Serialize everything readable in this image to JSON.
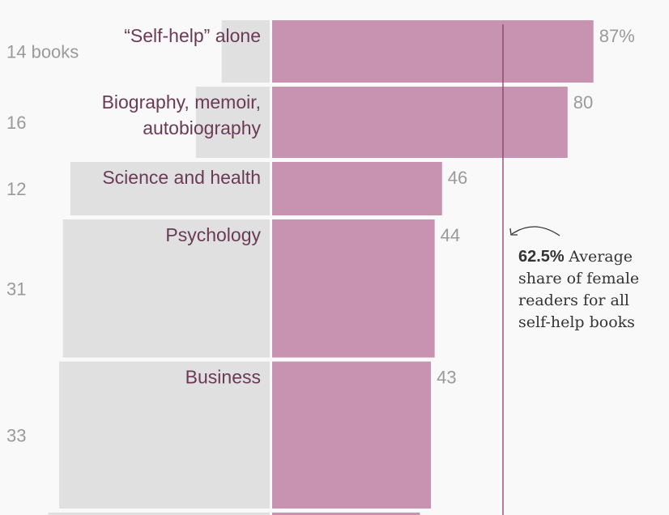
{
  "chart_data": {
    "type": "bar",
    "description_of_encoding": "",
    "categories": [
      "“Self-help” alone",
      "Biography, memoir,\nautobiography",
      "Science and health",
      "Psychology",
      "Business",
      ""
    ],
    "book_count_labels": [
      "14 books",
      "16",
      "12",
      "31",
      "33",
      ""
    ],
    "book_counts": [
      14,
      16,
      12,
      31,
      33,
      null
    ],
    "value_labels": [
      "87%",
      "80",
      "46",
      "44",
      "43",
      ""
    ],
    "female_share": [
      87,
      80,
      46,
      44,
      43,
      40
    ],
    "xlim": [
      0,
      100
    ],
    "reference_line": {
      "value": 62.5,
      "bold_label": "62.5%",
      "label_lines": [
        "Average",
        "share of female",
        "readers for all",
        "self-help books"
      ]
    },
    "colors": {
      "female": "#c892b1",
      "other": "#e0e0e0",
      "label": "#6b3a56",
      "reference": "#8a3e66",
      "background": "#f9f9f9"
    }
  }
}
